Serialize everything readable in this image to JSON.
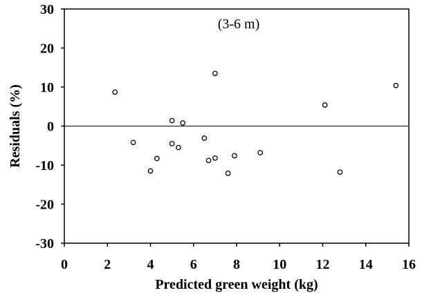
{
  "chart_data": {
    "type": "scatter",
    "title": "",
    "annotation": "(3-6 m)",
    "xlabel": "Predicted green weight (kg)",
    "ylabel": "Residuals (%)",
    "xlim": [
      0,
      16
    ],
    "ylim": [
      -30,
      30
    ],
    "x_ticks": [
      0,
      2,
      4,
      6,
      8,
      10,
      12,
      14,
      16
    ],
    "y_ticks": [
      30,
      20,
      10,
      0,
      -10,
      -20,
      -30
    ],
    "grid": false,
    "legend": "none",
    "reference_line_y": 0,
    "marker": "open-circle",
    "colors": {
      "axis": "#000000",
      "marker_stroke": "#000000",
      "marker_fill": "#ffffff",
      "reference_line": "#000000"
    },
    "points": [
      {
        "x": 2.35,
        "y": 8.7
      },
      {
        "x": 3.2,
        "y": -4.2
      },
      {
        "x": 4.0,
        "y": -11.5
      },
      {
        "x": 4.3,
        "y": -8.3
      },
      {
        "x": 5.0,
        "y": 1.4
      },
      {
        "x": 5.0,
        "y": -4.5
      },
      {
        "x": 5.3,
        "y": -5.5
      },
      {
        "x": 5.5,
        "y": 0.8
      },
      {
        "x": 6.5,
        "y": -3.1
      },
      {
        "x": 6.7,
        "y": -8.8
      },
      {
        "x": 7.0,
        "y": 13.5
      },
      {
        "x": 7.0,
        "y": -8.2
      },
      {
        "x": 7.6,
        "y": -12.1
      },
      {
        "x": 7.9,
        "y": -7.6
      },
      {
        "x": 9.1,
        "y": -6.8
      },
      {
        "x": 12.1,
        "y": 5.4
      },
      {
        "x": 12.8,
        "y": -11.8
      },
      {
        "x": 15.4,
        "y": 10.4
      }
    ]
  }
}
